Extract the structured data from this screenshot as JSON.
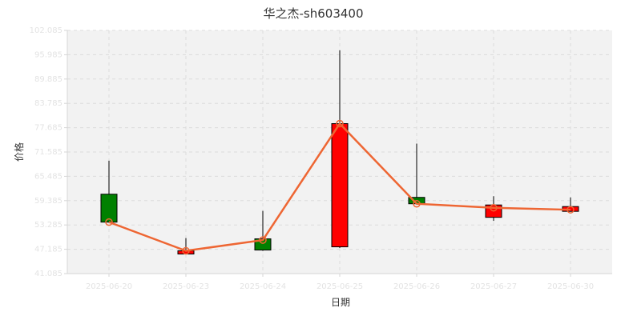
{
  "chart_data": {
    "type": "candlestick",
    "title": "华之杰-sh603400",
    "xlabel": "日期",
    "ylabel": "价格",
    "categories": [
      "2025-06-20",
      "2025-06-23",
      "2025-06-24",
      "2025-06-25",
      "2025-06-26",
      "2025-06-27",
      "2025-06-30"
    ],
    "yticks": [
      "41.085",
      "47.185",
      "53.285",
      "59.385",
      "65.485",
      "71.585",
      "77.685",
      "83.785",
      "89.885",
      "95.985",
      "102.085"
    ],
    "ylim": [
      41.085,
      102.085
    ],
    "grid": true,
    "series": [
      {
        "kind": "candlestick",
        "open": [
          61.0,
          46.0,
          49.8,
          47.8,
          60.2,
          55.2,
          56.7
        ],
        "close": [
          54.0,
          46.8,
          47.0,
          78.7,
          58.6,
          58.3,
          57.9
        ],
        "high": [
          69.4,
          50.0,
          56.8,
          97.1,
          73.7,
          60.5,
          60.2
        ],
        "low": [
          54.0,
          46.0,
          46.8,
          47.5,
          58.4,
          54.3,
          56.6
        ],
        "up_color": "#ff0000",
        "down_color": "#008000"
      },
      {
        "kind": "line",
        "values": [
          54.0,
          46.8,
          49.5,
          78.7,
          58.6,
          57.6,
          57.1
        ],
        "color": "#ee6633"
      }
    ]
  }
}
